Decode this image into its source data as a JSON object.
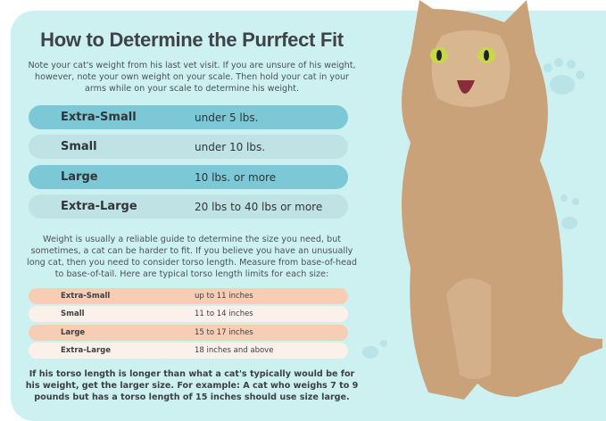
{
  "title": "How to Determine the Purrfect Fit",
  "intro": "Note your cat's weight from his last vet visit. If you are unsure of his weight, however, note your own weight on your scale. Then hold your cat in your arms while on your scale to determine his weight.",
  "weight_table": [
    {
      "size": "Extra-Small",
      "value": "under 5 lbs."
    },
    {
      "size": "Small",
      "value": "under 10 lbs."
    },
    {
      "size": "Large",
      "value": "10 lbs. or more"
    },
    {
      "size": "Extra-Large",
      "value": "20 lbs to 40 lbs or more"
    }
  ],
  "torso_intro": "Weight is usually a reliable guide to determine the size you need, but sometimes, a cat can be harder to fit. If you believe you have an unusually long cat, then you need to consider torso length. Measure from base-of-head to base-of-tail. Here are typical torso length limits for each size:",
  "torso_table": [
    {
      "size": "Extra-Small",
      "value": "up to 11 inches"
    },
    {
      "size": "Small",
      "value": "11 to 14 inches"
    },
    {
      "size": "Large",
      "value": "15 to 17 inches"
    },
    {
      "size": "Extra-Large",
      "value": "18 inches and above"
    }
  ],
  "note": "If his torso length is longer than what a cat's typically would be for his weight, get the larger size. For example: A cat who weighs 7 to 9 pounds but has a torso length of 15 inches should use size large.",
  "colors": {
    "background": "#cdf0f1",
    "weight_dark": "#7cc8d6",
    "weight_light": "#bfe2e5",
    "torso_peach": "#f7cdb6",
    "torso_cream": "#fbf1ea"
  }
}
